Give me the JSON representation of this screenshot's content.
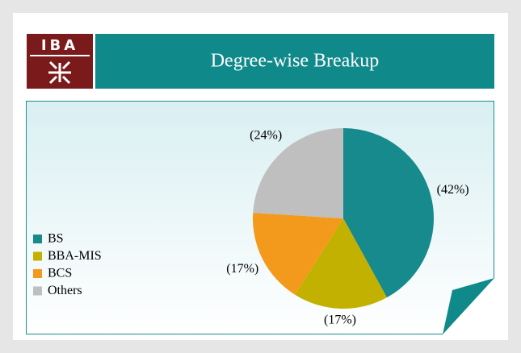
{
  "logo": "IBA",
  "chart_data": {
    "type": "pie",
    "title": "Degree-wise Breakup",
    "categories": [
      "BS",
      "BBA-MIS",
      "BCS",
      "Others"
    ],
    "values": [
      42,
      17,
      17,
      24
    ],
    "value_labels": [
      "(42%)",
      "(17%)",
      "(17%)",
      "(24%)"
    ],
    "colors": [
      "#168a8c",
      "#c3b100",
      "#f39a1c",
      "#bfbfbf"
    ],
    "legend": "left"
  }
}
